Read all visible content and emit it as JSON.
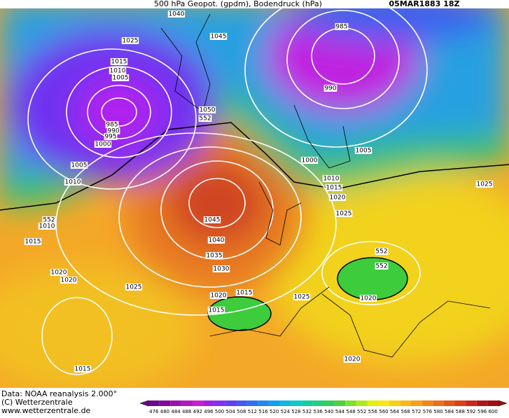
{
  "header": {
    "title": "500 hPa Geopot. (gpdm), Bodendruck (hPa)",
    "date": "05MAR1883 18Z"
  },
  "contour_labels": [
    1040,
    1045,
    1025,
    1015,
    1010,
    1005,
    985,
    990,
    995,
    1000,
    1005,
    1010,
    1050,
    552,
    985,
    990,
    1000,
    1005,
    1010,
    1015,
    1020,
    1025,
    1045,
    1040,
    1035,
    1030,
    1025,
    1020,
    1020,
    1015,
    1010,
    552,
    1015,
    1025,
    1020,
    1015,
    552,
    1025,
    1020,
    552,
    1020,
    1015
  ],
  "footer": [
    "Data: NOAA reanalysis 2.000°",
    "(C) Wetterzentrale",
    "www.wetterzentrale.de"
  ],
  "color_scale": [
    476,
    480,
    484,
    488,
    492,
    496,
    500,
    504,
    508,
    512,
    516,
    520,
    524,
    528,
    532,
    536,
    540,
    544,
    548,
    552,
    556,
    560,
    564,
    568,
    572,
    576,
    580,
    584,
    588,
    592,
    596,
    600
  ]
}
